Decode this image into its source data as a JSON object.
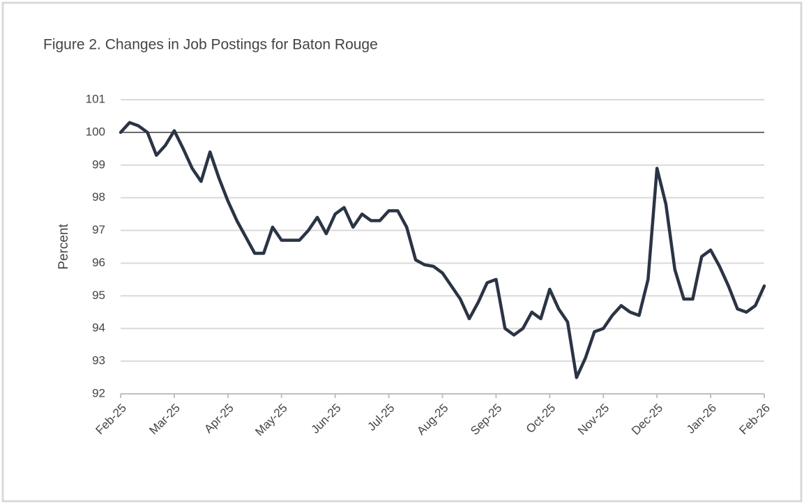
{
  "chart_data": {
    "type": "line",
    "title": "Figure 2. Changes in Job Postings for Baton Rouge",
    "y_label": "Percent",
    "categories": [
      "Feb-25",
      null,
      null,
      null,
      null,
      null,
      "Mar-25",
      null,
      null,
      null,
      null,
      null,
      "Apr-25",
      null,
      null,
      null,
      null,
      null,
      "May-25",
      null,
      null,
      null,
      null,
      null,
      "Jun-25",
      null,
      null,
      null,
      null,
      null,
      "Jul-25",
      null,
      null,
      null,
      null,
      null,
      "Aug-25",
      null,
      null,
      null,
      null,
      null,
      "Sep-25",
      null,
      null,
      null,
      null,
      null,
      "Oct-25",
      null,
      null,
      null,
      null,
      null,
      "Nov-25",
      null,
      null,
      null,
      null,
      null,
      "Dec-25",
      null,
      null,
      null,
      null,
      null,
      "Jan-26",
      null,
      null,
      null,
      null,
      null,
      "Feb-26"
    ],
    "series": [
      {
        "name": "Baton Rouge",
        "color": "#2b3445",
        "values": [
          100.0,
          100.3,
          100.2,
          100.0,
          99.3,
          99.6,
          100.05,
          99.5,
          98.9,
          98.5,
          99.4,
          98.6,
          97.9,
          97.3,
          96.8,
          96.3,
          96.3,
          97.1,
          96.7,
          96.7,
          96.7,
          97.0,
          97.4,
          96.9,
          97.5,
          97.7,
          97.1,
          97.5,
          97.3,
          97.3,
          97.6,
          97.6,
          97.1,
          96.1,
          95.95,
          95.9,
          95.7,
          95.3,
          94.9,
          94.3,
          94.8,
          95.4,
          95.5,
          94.0,
          93.8,
          94.0,
          94.5,
          94.3,
          95.2,
          94.6,
          94.2,
          92.5,
          93.1,
          93.9,
          94.0,
          94.4,
          94.7,
          94.5,
          94.4,
          95.5,
          98.9,
          97.8,
          95.8,
          94.9,
          94.9,
          96.2,
          96.4,
          95.9,
          95.3,
          94.6,
          94.5,
          94.7,
          95.3
        ]
      }
    ],
    "reference_line": 100,
    "ylim": [
      92,
      101
    ],
    "yticks": [
      92,
      93,
      94,
      95,
      96,
      97,
      98,
      99,
      100,
      101
    ],
    "grid": true
  }
}
